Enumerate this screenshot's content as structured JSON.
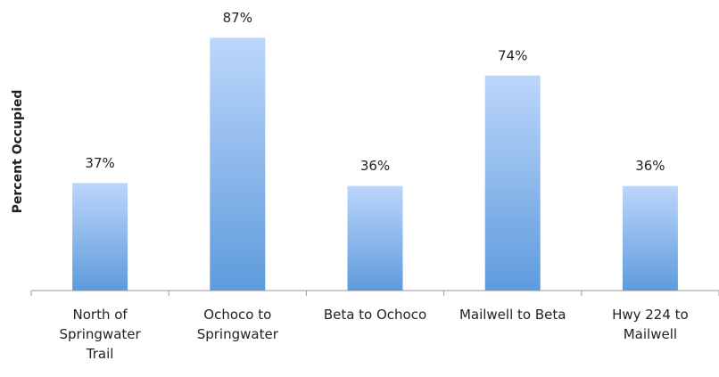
{
  "chart_data": {
    "type": "bar",
    "y_axis_label": "Percent Occupied",
    "categories": [
      "North of Springwater Trail",
      "Ochoco to Springwater",
      "Beta to Ochoco",
      "Mailwell to Beta",
      "Hwy 224 to Mailwell"
    ],
    "values": [
      37,
      87,
      36,
      74,
      36
    ],
    "value_labels": [
      "37%",
      "87%",
      "36%",
      "74%",
      "36%"
    ],
    "ylim": [
      0,
      100
    ]
  }
}
